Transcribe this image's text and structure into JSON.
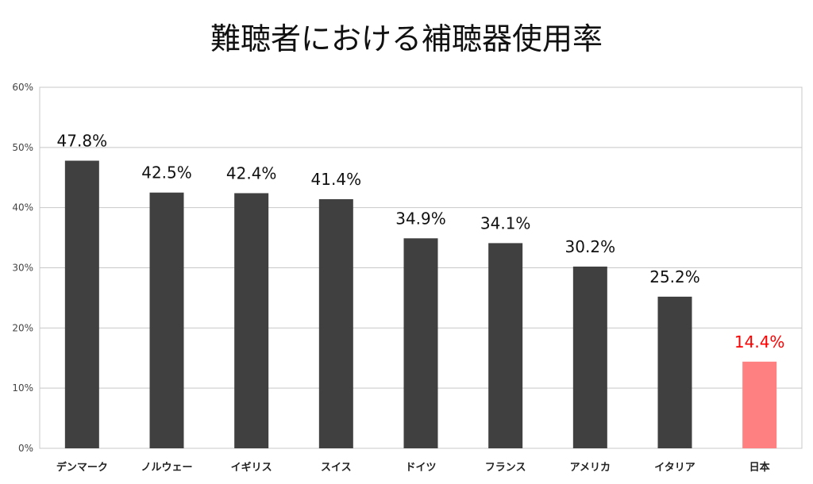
{
  "chart_data": {
    "type": "bar",
    "title": "難聴者における補聴器使用率",
    "categories": [
      "デンマーク",
      "ノルウェー",
      "イギリス",
      "スイス",
      "ドイツ",
      "フランス",
      "アメリカ",
      "イタリア",
      "日本"
    ],
    "values": [
      47.8,
      42.5,
      42.4,
      41.4,
      34.9,
      34.1,
      30.2,
      25.2,
      14.4
    ],
    "data_labels": [
      "47.8%",
      "42.5%",
      "42.4%",
      "41.4%",
      "34.9%",
      "34.1%",
      "30.2%",
      "25.2%",
      "14.4%"
    ],
    "ylim": [
      0,
      60
    ],
    "yticks": [
      0,
      10,
      20,
      30,
      40,
      50,
      60
    ],
    "ytick_labels": [
      "0%",
      "10%",
      "20%",
      "30%",
      "40%",
      "50%",
      "60%"
    ],
    "grid": true,
    "colors": {
      "bar": "#404040",
      "highlight_bar": "#ff8080",
      "highlight_label": "#ff0000",
      "label": "#111111",
      "grid": "#c8c8c8"
    },
    "highlight_category": "日本"
  }
}
